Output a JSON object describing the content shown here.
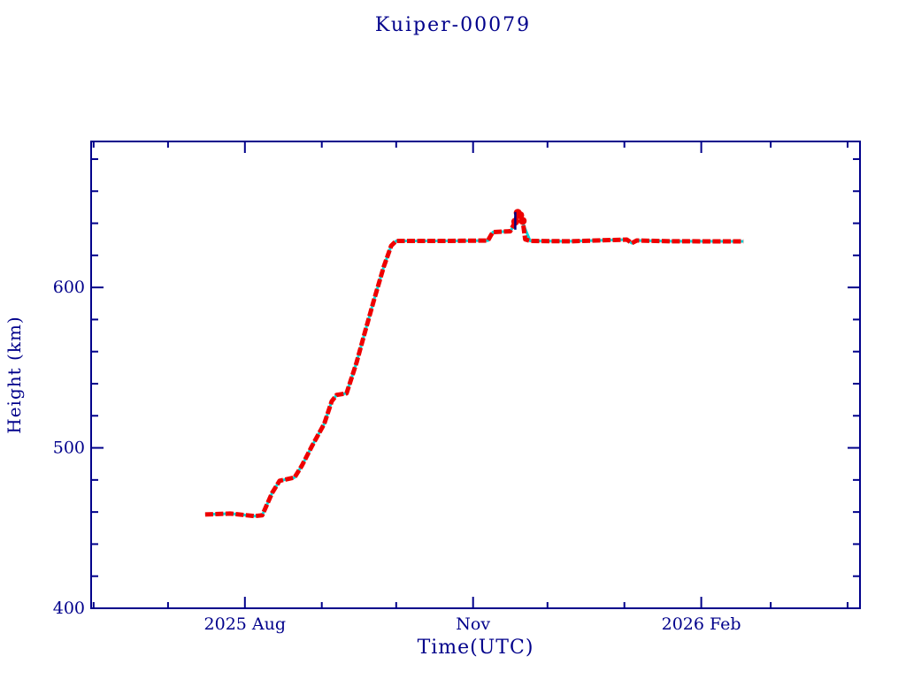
{
  "header": {
    "title": "Kuiper-00079"
  },
  "chart_data": {
    "type": "line",
    "title": "Kuiper-00079",
    "xlabel": "Time(UTC)",
    "ylabel": "Height (km)",
    "legend": "none",
    "grid": false,
    "colors": {
      "frame": "#00008b",
      "text": "#00008b",
      "observed": "#ee0000",
      "predicted": "#00d9d9",
      "event_marker": "#000080",
      "background": "#ffffff"
    },
    "x_axis": {
      "start": "2025-05-31",
      "end": "2026-04-06",
      "ticks": [
        {
          "date": "2025-06-01",
          "major": false,
          "label": ""
        },
        {
          "date": "2025-07-01",
          "major": false,
          "label": ""
        },
        {
          "date": "2025-08-01",
          "major": true,
          "label": "2025 Aug"
        },
        {
          "date": "2025-09-01",
          "major": false,
          "label": ""
        },
        {
          "date": "2025-10-01",
          "major": false,
          "label": ""
        },
        {
          "date": "2025-11-01",
          "major": true,
          "label": "Nov"
        },
        {
          "date": "2025-12-01",
          "major": false,
          "label": ""
        },
        {
          "date": "2026-01-01",
          "major": false,
          "label": ""
        },
        {
          "date": "2026-02-01",
          "major": true,
          "label": "2026 Feb"
        },
        {
          "date": "2026-03-01",
          "major": false,
          "label": ""
        },
        {
          "date": "2026-04-01",
          "major": false,
          "label": ""
        }
      ]
    },
    "y_axis": {
      "min": 400,
      "max": 691,
      "minor_step": 20,
      "major_ticks": [
        400,
        500,
        600
      ]
    },
    "series": [
      {
        "name": "predicted-orbit-line",
        "color": "#00d9d9",
        "style": "line",
        "points": [
          [
            "2025-07-16",
            458.5
          ],
          [
            "2025-07-26",
            459.0
          ],
          [
            "2025-08-05",
            457.5
          ],
          [
            "2025-08-08",
            458.0
          ],
          [
            "2025-08-12",
            472.0
          ],
          [
            "2025-08-15",
            479.5
          ],
          [
            "2025-08-21",
            481.5
          ],
          [
            "2025-08-24",
            489.0
          ],
          [
            "2025-08-28",
            501.0
          ],
          [
            "2025-09-02",
            515.0
          ],
          [
            "2025-09-05",
            529.0
          ],
          [
            "2025-09-07",
            533.0
          ],
          [
            "2025-09-11",
            534.0
          ],
          [
            "2025-09-15",
            553.0
          ],
          [
            "2025-09-18",
            570.0
          ],
          [
            "2025-09-22",
            592.0
          ],
          [
            "2025-09-26",
            613.0
          ],
          [
            "2025-09-29",
            626.0
          ],
          [
            "2025-10-01",
            629.0
          ],
          [
            "2025-10-20",
            629.0
          ],
          [
            "2025-11-07",
            629.2
          ],
          [
            "2025-11-08",
            632.0
          ],
          [
            "2025-11-09",
            634.5
          ],
          [
            "2025-11-16",
            635.0
          ],
          [
            "2025-11-18",
            640.0
          ],
          [
            "2025-11-19",
            645.5
          ],
          [
            "2025-11-20",
            644.0
          ],
          [
            "2025-11-22",
            636.5
          ],
          [
            "2025-11-24",
            629.0
          ],
          [
            "2025-12-10",
            628.8
          ],
          [
            "2026-01-02",
            629.8
          ],
          [
            "2026-01-04",
            627.6
          ],
          [
            "2026-01-06",
            629.3
          ],
          [
            "2026-01-20",
            628.8
          ],
          [
            "2026-02-18",
            628.7
          ]
        ]
      },
      {
        "name": "observed-height-markers",
        "color": "#ee0000",
        "style": "dense-markers",
        "points": [
          [
            "2025-07-16",
            458.5
          ],
          [
            "2025-07-26",
            459.0
          ],
          [
            "2025-08-05",
            457.5
          ],
          [
            "2025-08-08",
            458.0
          ],
          [
            "2025-08-12",
            472.0
          ],
          [
            "2025-08-15",
            479.5
          ],
          [
            "2025-08-21",
            481.5
          ],
          [
            "2025-08-24",
            489.0
          ],
          [
            "2025-08-28",
            501.0
          ],
          [
            "2025-09-02",
            515.0
          ],
          [
            "2025-09-05",
            529.0
          ],
          [
            "2025-09-07",
            533.0
          ],
          [
            "2025-09-11",
            534.0
          ],
          [
            "2025-09-15",
            553.0
          ],
          [
            "2025-09-18",
            570.0
          ],
          [
            "2025-09-22",
            592.0
          ],
          [
            "2025-09-26",
            613.0
          ],
          [
            "2025-09-29",
            626.0
          ],
          [
            "2025-10-01",
            629.0
          ],
          [
            "2025-10-20",
            629.0
          ],
          [
            "2025-11-07",
            629.2
          ],
          [
            "2025-11-08",
            632.0
          ],
          [
            "2025-11-09",
            634.5
          ],
          [
            "2025-11-16",
            635.0
          ],
          [
            "2025-11-18",
            641.0
          ],
          [
            "2025-11-19",
            646.5
          ],
          [
            "2025-11-20",
            645.0
          ],
          [
            "2025-11-21",
            641.5
          ],
          [
            "2025-11-22",
            630.0
          ],
          [
            "2025-11-24",
            629.0
          ],
          [
            "2025-12-10",
            628.8
          ],
          [
            "2026-01-02",
            629.8
          ],
          [
            "2026-01-04",
            627.6
          ],
          [
            "2026-01-06",
            629.3
          ],
          [
            "2026-01-20",
            628.8
          ],
          [
            "2026-02-18",
            628.7
          ]
        ]
      },
      {
        "name": "event-marker-segment",
        "color": "#000080",
        "style": "line",
        "points": [
          [
            "2025-11-18",
            636.0
          ],
          [
            "2025-11-18",
            647.0
          ]
        ]
      }
    ]
  }
}
